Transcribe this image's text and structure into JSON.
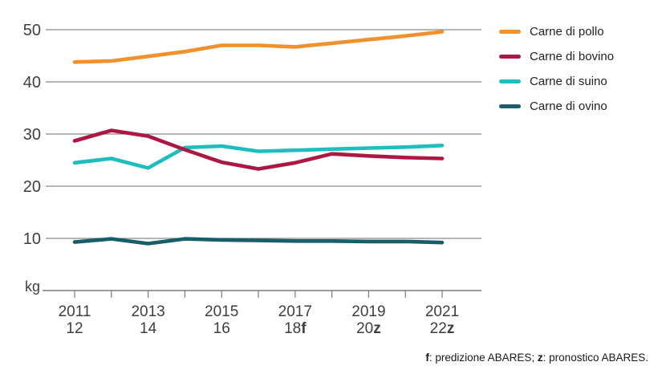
{
  "chart_data": {
    "type": "line",
    "unit_label": "kg",
    "ylabel": "kg",
    "ylim": [
      0,
      55
    ],
    "grid": true,
    "legend_position": "right",
    "y_ticks": [
      50,
      40,
      30,
      20,
      10
    ],
    "x_years": [
      2011,
      2012,
      2013,
      2014,
      2015,
      2016,
      2017,
      2018,
      2019,
      2020,
      2021
    ],
    "x_tick_labels": [
      {
        "year": 2011,
        "line1": "2011",
        "line2": "12",
        "suffix": ""
      },
      {
        "year": 2013,
        "line1": "2013",
        "line2": "14",
        "suffix": ""
      },
      {
        "year": 2015,
        "line1": "2015",
        "line2": "16",
        "suffix": ""
      },
      {
        "year": 2017,
        "line1": "2017",
        "line2": "18",
        "suffix": "f"
      },
      {
        "year": 2019,
        "line1": "2019",
        "line2": "20",
        "suffix": "z"
      },
      {
        "year": 2021,
        "line1": "2021",
        "line2": "22",
        "suffix": "z"
      }
    ],
    "series": [
      {
        "name": "Carne di pollo",
        "color": "#F0912D",
        "values": [
          43.8,
          44.0,
          44.9,
          45.8,
          47.0,
          47.0,
          46.7,
          47.4,
          48.1,
          48.8,
          49.6
        ]
      },
      {
        "name": "Carne di bovino",
        "color": "#AC1843",
        "values": [
          28.7,
          30.7,
          29.6,
          27.0,
          24.6,
          23.3,
          24.5,
          26.2,
          25.8,
          25.5,
          25.3
        ]
      },
      {
        "name": "Carne di suino",
        "color": "#1FBDBE",
        "values": [
          24.5,
          25.3,
          23.5,
          27.4,
          27.7,
          26.7,
          26.9,
          27.1,
          27.3,
          27.5,
          27.8
        ]
      },
      {
        "name": "Carne di ovino",
        "color": "#175E6B",
        "values": [
          9.3,
          9.9,
          9.0,
          9.9,
          9.7,
          9.6,
          9.5,
          9.5,
          9.4,
          9.4,
          9.2
        ]
      }
    ]
  },
  "footnote": {
    "f_label": "f",
    "f_text": ": predizione ABARES; ",
    "z_label": "z",
    "z_text": ": pronostico ABARES."
  }
}
